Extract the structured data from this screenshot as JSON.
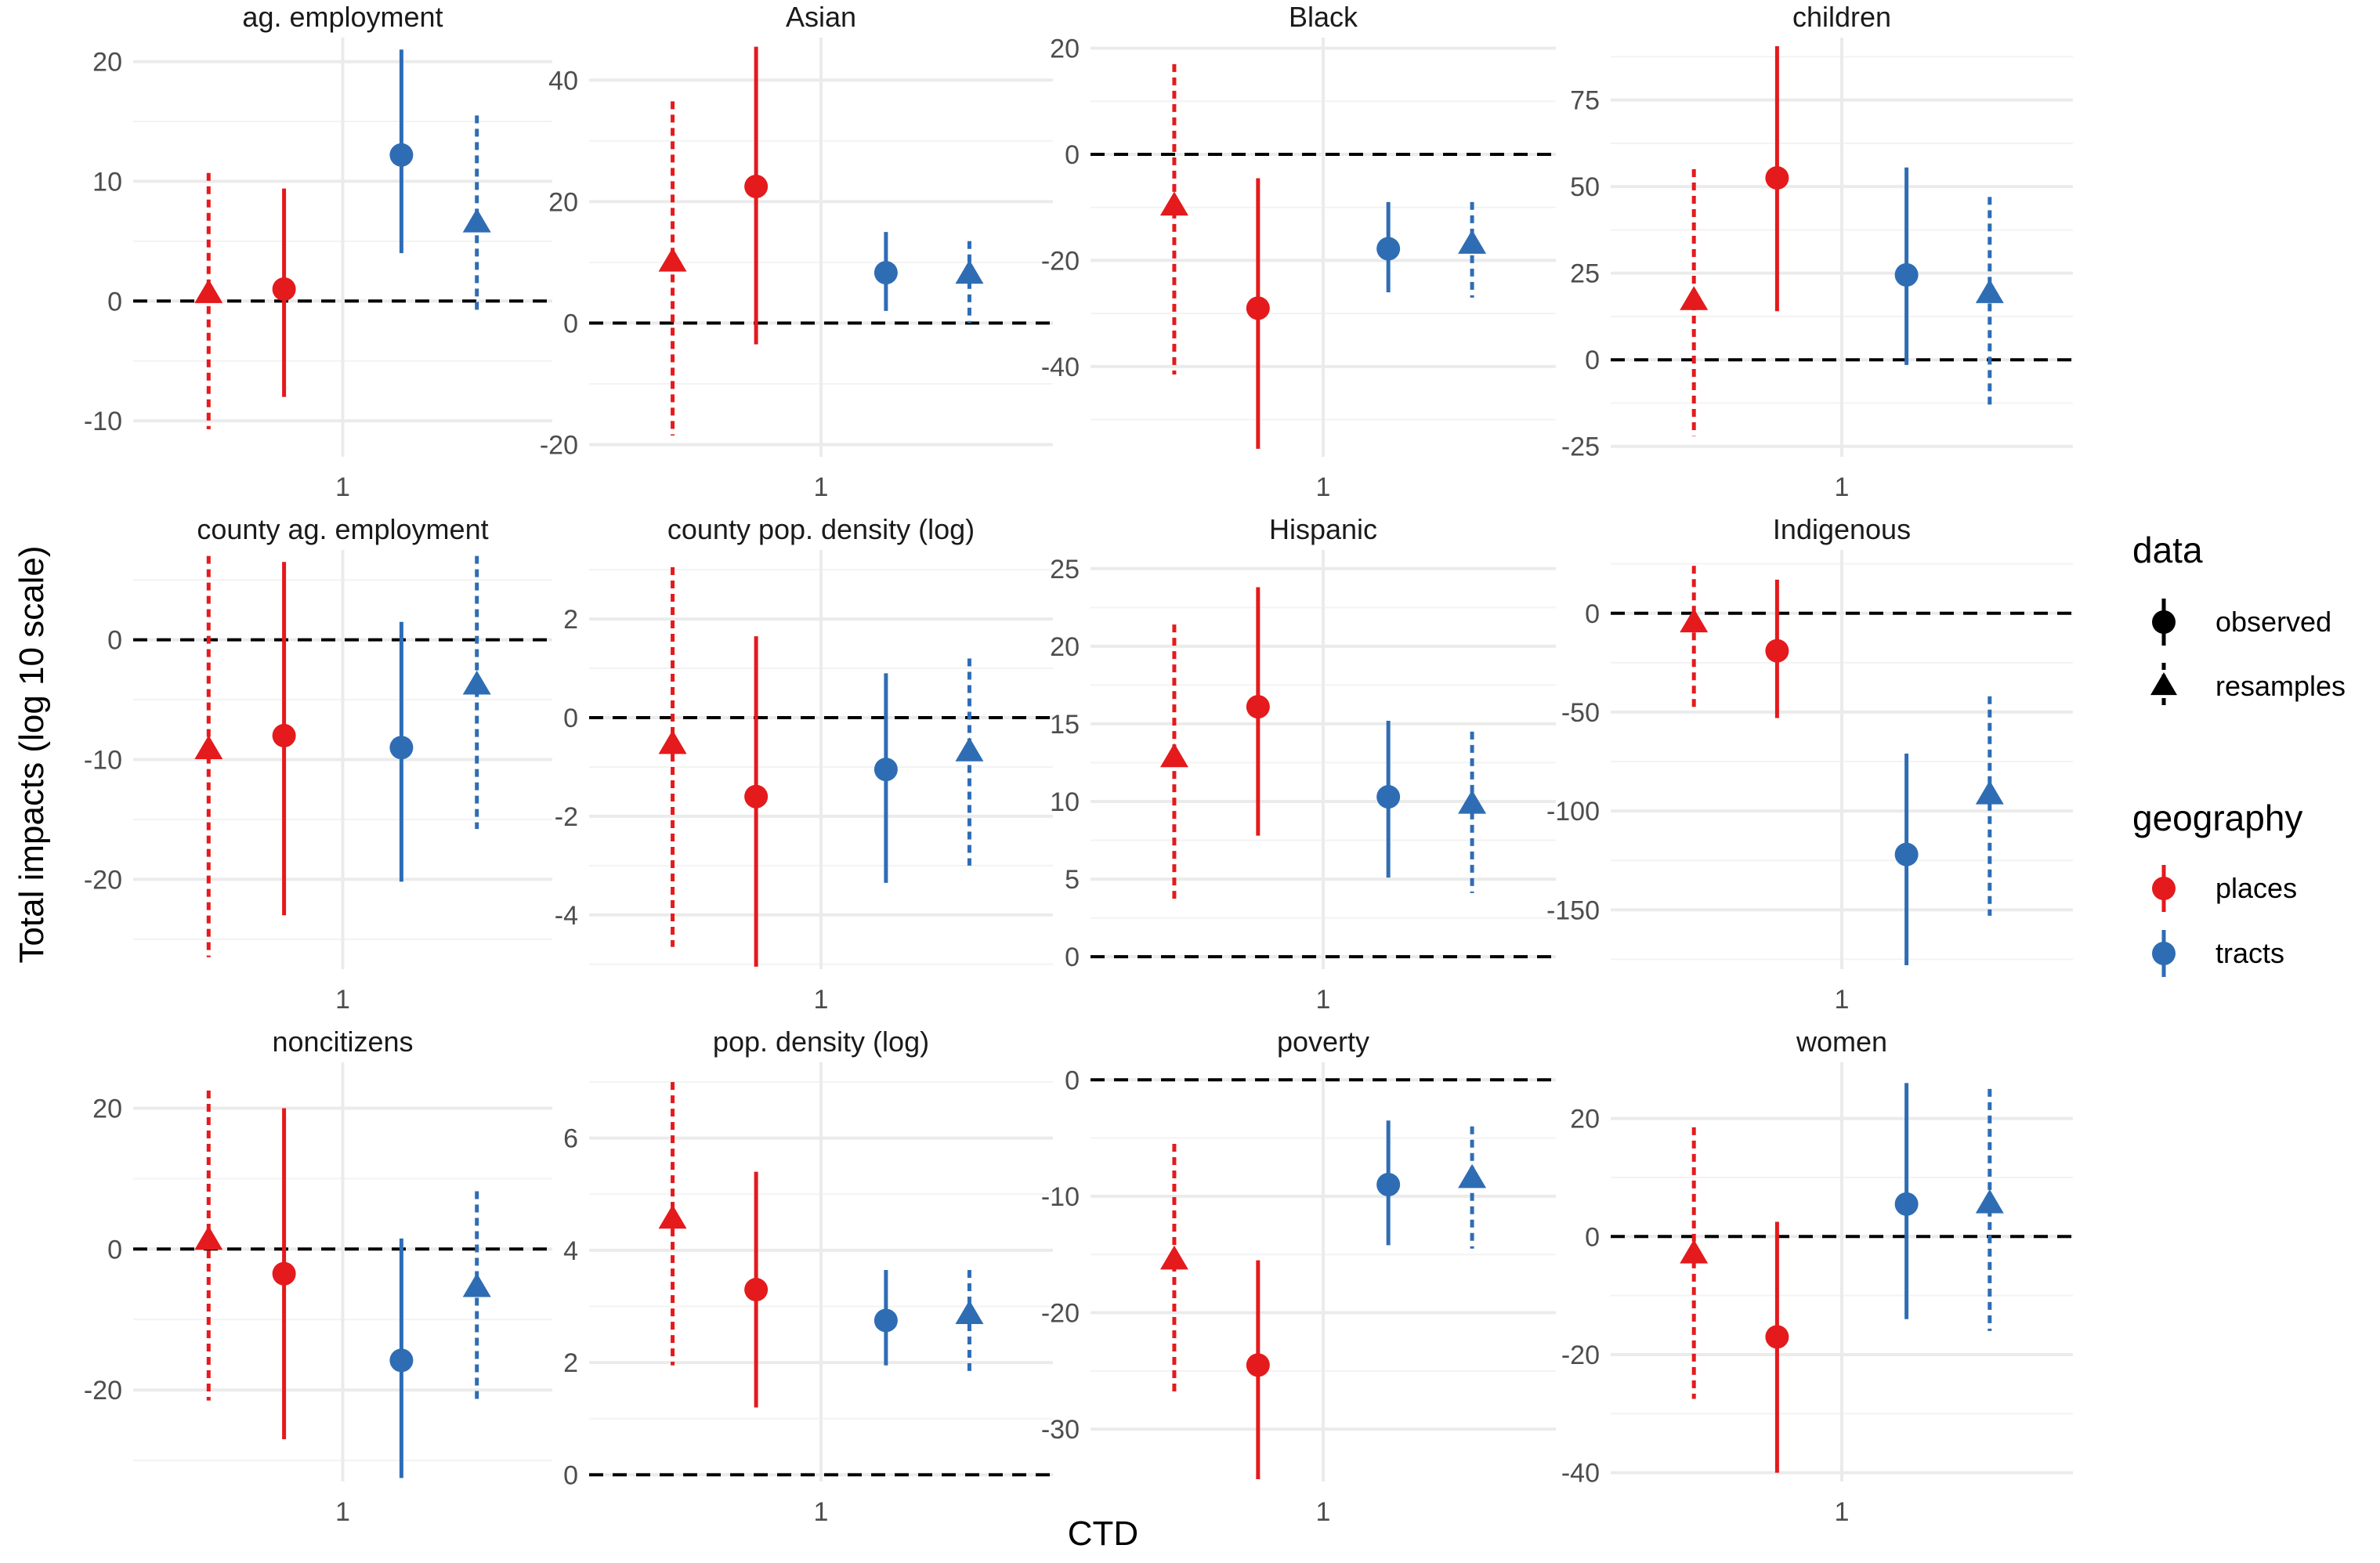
{
  "colors": {
    "places": "#E41A1C",
    "tracts": "#2E6DB4",
    "gridMajor": "#EBEBEB",
    "gridMinor": "#F3F3F3",
    "zeroLine": "#000000",
    "legendKey": "#000000"
  },
  "chart_data": {
    "type": "scatter",
    "subtype": "faceted point-range (coefficient plot)",
    "xlabel": "CTD",
    "ylabel": "Total impacts (log 10 scale)",
    "x_category": "1",
    "series_order": [
      {
        "geography": "places",
        "data": "resamples"
      },
      {
        "geography": "places",
        "data": "observed"
      },
      {
        "geography": "tracts",
        "data": "observed"
      },
      {
        "geography": "tracts",
        "data": "resamples"
      }
    ],
    "legend": {
      "data": {
        "title": "data",
        "items": [
          "observed",
          "resamples"
        ]
      },
      "geography": {
        "title": "geography",
        "items": [
          "places",
          "tracts"
        ]
      }
    },
    "panels": [
      {
        "title": "ag. employment",
        "ylim": [
          -13,
          22
        ],
        "yticks": [
          -10,
          0,
          10,
          20
        ],
        "y_minor": [
          -5,
          5,
          15
        ],
        "points": [
          {
            "geography": "places",
            "data": "resamples",
            "estimate": 0.6,
            "low": -10.7,
            "high": 10.7
          },
          {
            "geography": "places",
            "data": "observed",
            "estimate": 1.0,
            "low": -8.0,
            "high": 9.4
          },
          {
            "geography": "tracts",
            "data": "observed",
            "estimate": 12.2,
            "low": 4.0,
            "high": 21.0
          },
          {
            "geography": "tracts",
            "data": "resamples",
            "estimate": 6.5,
            "low": -1.0,
            "high": 15.5
          }
        ]
      },
      {
        "title": "Asian",
        "ylim": [
          -22,
          47
        ],
        "yticks": [
          -20,
          0,
          20,
          40
        ],
        "y_minor": [
          -10,
          10,
          30
        ],
        "points": [
          {
            "geography": "places",
            "data": "resamples",
            "estimate": 10.0,
            "low": -18.5,
            "high": 36.5
          },
          {
            "geography": "places",
            "data": "observed",
            "estimate": 22.5,
            "low": -3.5,
            "high": 45.5
          },
          {
            "geography": "tracts",
            "data": "observed",
            "estimate": 8.3,
            "low": 2.0,
            "high": 15.0
          },
          {
            "geography": "tracts",
            "data": "resamples",
            "estimate": 8.0,
            "low": 0.0,
            "high": 13.5
          }
        ]
      },
      {
        "title": "Black",
        "ylim": [
          -57,
          22
        ],
        "yticks": [
          -40,
          -20,
          0,
          20
        ],
        "y_minor": [
          -50,
          -30,
          -10,
          10
        ],
        "points": [
          {
            "geography": "places",
            "data": "resamples",
            "estimate": -9.8,
            "low": -41.5,
            "high": 17.0
          },
          {
            "geography": "places",
            "data": "observed",
            "estimate": -29.0,
            "low": -55.5,
            "high": -4.5
          },
          {
            "geography": "tracts",
            "data": "observed",
            "estimate": -17.8,
            "low": -26.0,
            "high": -9.0
          },
          {
            "geography": "tracts",
            "data": "resamples",
            "estimate": -17.0,
            "low": -27.0,
            "high": -9.0
          }
        ]
      },
      {
        "title": "children",
        "ylim": [
          -28,
          93
        ],
        "yticks": [
          -25,
          0,
          25,
          50,
          75
        ],
        "y_minor": [
          -12.5,
          12.5,
          37.5,
          62.5,
          87.5
        ],
        "points": [
          {
            "geography": "places",
            "data": "resamples",
            "estimate": 17.0,
            "low": -22.0,
            "high": 55.0
          },
          {
            "geography": "places",
            "data": "observed",
            "estimate": 52.5,
            "low": 14.0,
            "high": 90.5
          },
          {
            "geography": "tracts",
            "data": "observed",
            "estimate": 24.5,
            "low": -1.5,
            "high": 55.5
          },
          {
            "geography": "tracts",
            "data": "resamples",
            "estimate": 19.0,
            "low": -13.0,
            "high": 47.0
          }
        ]
      },
      {
        "title": "county ag. employment",
        "ylim": [
          -27.5,
          7.5
        ],
        "yticks": [
          -20,
          -10,
          0
        ],
        "y_minor": [
          -25,
          -15,
          -5,
          5
        ],
        "points": [
          {
            "geography": "places",
            "data": "resamples",
            "estimate": -9.2,
            "low": -26.5,
            "high": 7.0
          },
          {
            "geography": "places",
            "data": "observed",
            "estimate": -8.0,
            "low": -23.0,
            "high": 6.5
          },
          {
            "geography": "tracts",
            "data": "observed",
            "estimate": -9.0,
            "low": -20.2,
            "high": 1.5
          },
          {
            "geography": "tracts",
            "data": "resamples",
            "estimate": -3.8,
            "low": -15.8,
            "high": 7.0
          }
        ]
      },
      {
        "title": "county pop. density (log)",
        "ylim": [
          -5.1,
          3.4
        ],
        "yticks": [
          -4,
          -2,
          0,
          2
        ],
        "y_minor": [
          -5,
          -3,
          -1,
          1,
          3
        ],
        "points": [
          {
            "geography": "places",
            "data": "resamples",
            "estimate": -0.55,
            "low": -4.65,
            "high": 3.05
          },
          {
            "geography": "places",
            "data": "observed",
            "estimate": -1.6,
            "low": -5.05,
            "high": 1.65
          },
          {
            "geography": "tracts",
            "data": "observed",
            "estimate": -1.05,
            "low": -3.35,
            "high": 0.9
          },
          {
            "geography": "tracts",
            "data": "resamples",
            "estimate": -0.7,
            "low": -3.0,
            "high": 1.2
          }
        ]
      },
      {
        "title": "Hispanic",
        "ylim": [
          -0.8,
          26.2
        ],
        "yticks": [
          0,
          5,
          10,
          15,
          20,
          25
        ],
        "y_minor": [
          2.5,
          7.5,
          12.5,
          17.5,
          22.5
        ],
        "points": [
          {
            "geography": "places",
            "data": "resamples",
            "estimate": 12.8,
            "low": 3.5,
            "high": 21.4
          },
          {
            "geography": "places",
            "data": "observed",
            "estimate": 16.1,
            "low": 7.8,
            "high": 23.8
          },
          {
            "geography": "tracts",
            "data": "observed",
            "estimate": 10.3,
            "low": 5.1,
            "high": 15.2
          },
          {
            "geography": "tracts",
            "data": "resamples",
            "estimate": 9.8,
            "low": 4.1,
            "high": 14.5
          }
        ]
      },
      {
        "title": "Indigenous",
        "ylim": [
          -180,
          32
        ],
        "yticks": [
          -150,
          -100,
          -50,
          0
        ],
        "y_minor": [
          -175,
          -125,
          -75,
          -25,
          25
        ],
        "points": [
          {
            "geography": "places",
            "data": "resamples",
            "estimate": -5.0,
            "low": -48.0,
            "high": 24.0
          },
          {
            "geography": "places",
            "data": "observed",
            "estimate": -19.0,
            "low": -53.0,
            "high": 17.0
          },
          {
            "geography": "tracts",
            "data": "observed",
            "estimate": -122.0,
            "low": -178.0,
            "high": -71.0
          },
          {
            "geography": "tracts",
            "data": "resamples",
            "estimate": -92.0,
            "low": -153.0,
            "high": -42.0
          }
        ]
      },
      {
        "title": "noncitizens",
        "ylim": [
          -33,
          26.5
        ],
        "yticks": [
          -20,
          0,
          20
        ],
        "y_minor": [
          -30,
          -10,
          10
        ],
        "points": [
          {
            "geography": "places",
            "data": "resamples",
            "estimate": 1.2,
            "low": -21.5,
            "high": 22.5
          },
          {
            "geography": "places",
            "data": "observed",
            "estimate": -3.5,
            "low": -27.0,
            "high": 20.0
          },
          {
            "geography": "tracts",
            "data": "observed",
            "estimate": -15.8,
            "low": -32.5,
            "high": 1.5
          },
          {
            "geography": "tracts",
            "data": "resamples",
            "estimate": -5.5,
            "low": -21.5,
            "high": 8.2
          }
        ]
      },
      {
        "title": "pop. density (log)",
        "ylim": [
          -0.12,
          7.35
        ],
        "yticks": [
          0,
          2,
          4,
          6
        ],
        "y_minor": [
          1,
          3,
          5,
          7
        ],
        "points": [
          {
            "geography": "places",
            "data": "resamples",
            "estimate": 4.55,
            "low": 1.95,
            "high": 7.0
          },
          {
            "geography": "places",
            "data": "observed",
            "estimate": 3.3,
            "low": 1.2,
            "high": 5.4
          },
          {
            "geography": "tracts",
            "data": "observed",
            "estimate": 2.75,
            "low": 1.95,
            "high": 3.65
          },
          {
            "geography": "tracts",
            "data": "resamples",
            "estimate": 2.85,
            "low": 1.85,
            "high": 3.65
          }
        ]
      },
      {
        "title": "poverty",
        "ylim": [
          -34.5,
          1.5
        ],
        "yticks": [
          -30,
          -20,
          -10,
          0
        ],
        "y_minor": [
          -25,
          -15,
          -5
        ],
        "points": [
          {
            "geography": "places",
            "data": "resamples",
            "estimate": -15.5,
            "low": -27.0,
            "high": -5.5
          },
          {
            "geography": "places",
            "data": "observed",
            "estimate": -24.5,
            "low": -34.3,
            "high": -15.5
          },
          {
            "geography": "tracts",
            "data": "observed",
            "estimate": -9.0,
            "low": -14.2,
            "high": -3.5
          },
          {
            "geography": "tracts",
            "data": "resamples",
            "estimate": -8.5,
            "low": -14.5,
            "high": -4.0
          }
        ]
      },
      {
        "title": "women",
        "ylim": [
          -41.5,
          29.5
        ],
        "yticks": [
          -40,
          -20,
          0,
          20
        ],
        "y_minor": [
          -30,
          -10,
          10
        ],
        "points": [
          {
            "geography": "places",
            "data": "resamples",
            "estimate": -3.0,
            "low": -27.5,
            "high": 18.5
          },
          {
            "geography": "places",
            "data": "observed",
            "estimate": -17.0,
            "low": -40.0,
            "high": 2.5
          },
          {
            "geography": "tracts",
            "data": "observed",
            "estimate": 5.5,
            "low": -14.0,
            "high": 26.0
          },
          {
            "geography": "tracts",
            "data": "resamples",
            "estimate": 5.5,
            "low": -16.0,
            "high": 25.0
          }
        ]
      }
    ]
  }
}
